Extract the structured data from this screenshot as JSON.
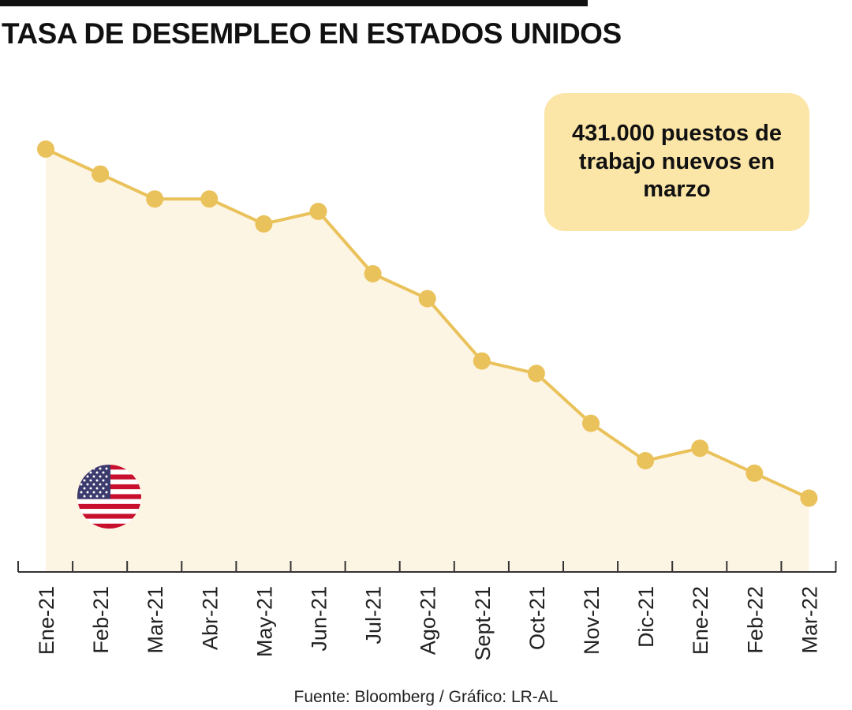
{
  "header": {
    "title": "TASA DE DESEMPLEO EN ESTADOS UNIDOS"
  },
  "callout": {
    "text": "431.000 puestos de trabajo nuevos en marzo"
  },
  "footer": {
    "source": "Fuente: Bloomberg / Gráfico: LR-AL"
  },
  "colors": {
    "line": "#eac25b",
    "marker": "#eac25b",
    "area": "#fdf5e3",
    "callout_bg": "#fbe5a7",
    "axis": "#333333"
  },
  "chart_data": {
    "type": "line",
    "title": "TASA DE DESEMPLEO EN ESTADOS UNIDOS",
    "xlabel": "",
    "ylabel": "",
    "categories": [
      "Ene-21",
      "Feb-21",
      "Mar-21",
      "Abr-21",
      "May-21",
      "Jun-21",
      "Jul-21",
      "Ago-21",
      "Sept-21",
      "Oct-21",
      "Nov-21",
      "Dic-21",
      "Ene-22",
      "Feb-22",
      "Mar-22"
    ],
    "series": [
      {
        "name": "Tasa de desempleo (%)",
        "values": [
          6.4,
          6.2,
          6.0,
          6.0,
          5.8,
          5.9,
          5.4,
          5.2,
          4.7,
          4.6,
          4.2,
          3.9,
          4.0,
          3.8,
          3.6
        ]
      }
    ],
    "ylim": [
      2.0,
      6.8
    ],
    "y_axis_visible": false,
    "grid": false,
    "filled_area": true
  }
}
